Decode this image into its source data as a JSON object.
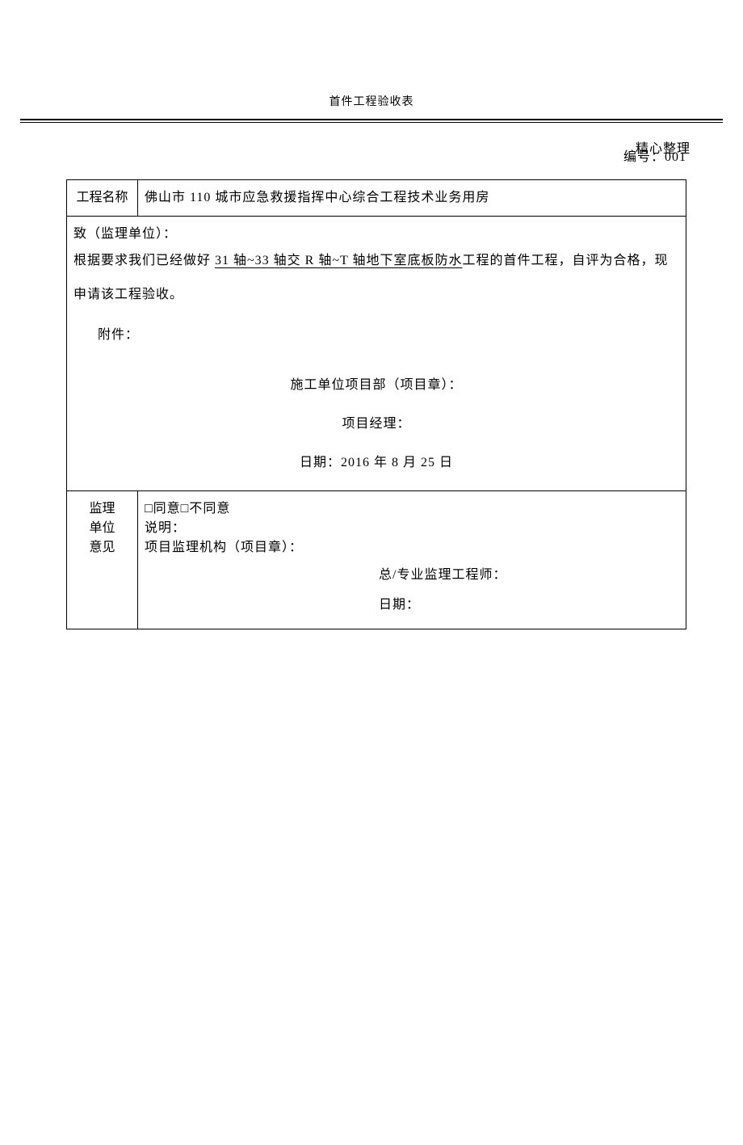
{
  "header": {
    "mark": "精心整理"
  },
  "title": "首件工程验收表",
  "doc_number_label": "编号：",
  "doc_number_value": "001",
  "table": {
    "row1": {
      "label": "工程名称",
      "value": "佛山市 110 城市应急救援指挥中心综合工程技术业务用房"
    },
    "body": {
      "addressed_to": "致（监理单位）：",
      "para_prefix": "根据要求我们已经做好 ",
      "para_underlined": "31 轴~33 轴交 R 轴~T 轴地下室底板防水",
      "para_suffix": "工程的首件工程，自评为合格，现申请该工程验收。",
      "attachment_label": "附件：",
      "dept_label": "施工单位项目部（项目章）：",
      "manager_label": "项目经理：",
      "date_label": "日期：",
      "date_value": "2016 年 8 月 25 日"
    },
    "supervisor": {
      "side_label_line1": "监理",
      "side_label_line2": "单位",
      "side_label_line3": "意见",
      "checkbox_agree": "□同意",
      "checkbox_disagree": "□不同意",
      "explain_label": "说明：",
      "org_label": "项目监理机构（项目章）：",
      "engineer_label": "总/专业监理工程师：",
      "date_label": "日期："
    }
  },
  "colors": {
    "text": "#000000",
    "background": "#ffffff",
    "border": "#000000"
  }
}
